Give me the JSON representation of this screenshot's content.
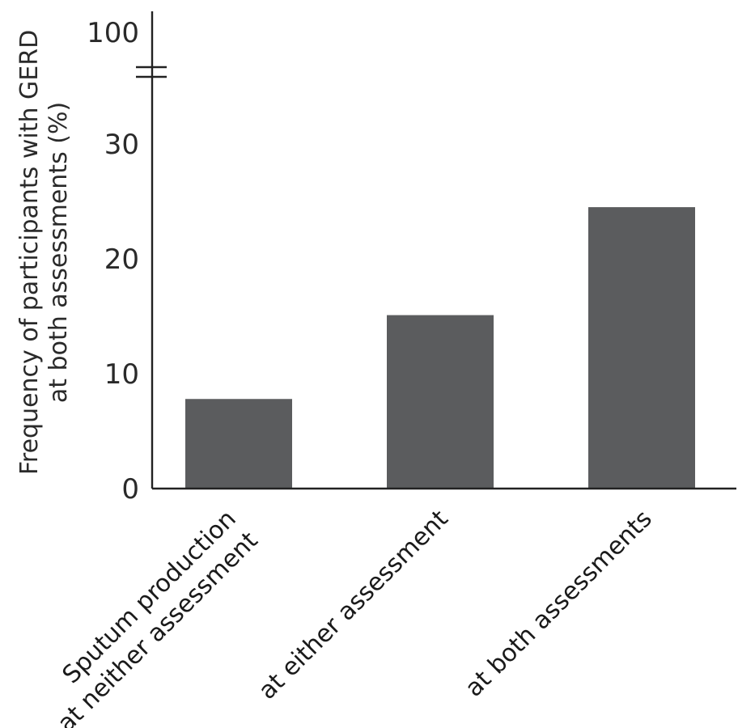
{
  "chart_data": {
    "type": "bar",
    "title": "",
    "xlabel": "",
    "ylabel": "Frequency of participants with GERD at both assessments (%)",
    "ylabel_lines": [
      "Frequency of participants with GERD",
      "at both assessments (%)"
    ],
    "categories": [
      "Sputum production at neither assessment",
      "at either assessment",
      "at both assessments"
    ],
    "category_label_lines": [
      [
        "Sputum production",
        "at neither assessment"
      ],
      [
        "at either assessment"
      ],
      [
        "at both assessments"
      ]
    ],
    "values": [
      7.8,
      15.1,
      24.5
    ],
    "ylim": [
      0,
      100
    ],
    "y_axis_break": {
      "between": [
        30,
        100
      ]
    },
    "yticks": [
      0,
      10,
      20,
      30,
      100
    ],
    "ytick_labels": [
      "0",
      "10",
      "20",
      "30",
      "100"
    ],
    "grid": false,
    "colors": {
      "bar": "#5b5c5e",
      "axis": "#222222",
      "text": "#2a2a2a"
    }
  }
}
